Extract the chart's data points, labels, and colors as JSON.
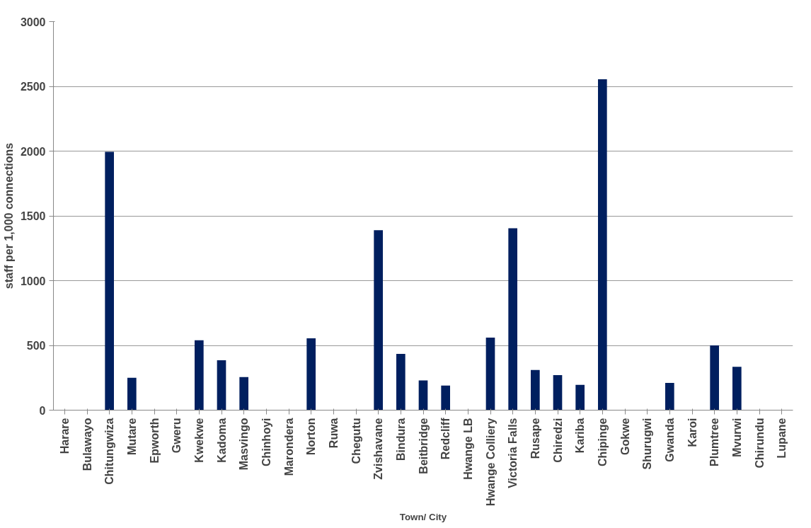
{
  "chart_data": {
    "type": "bar",
    "xlabel": "Town/ City",
    "ylabel": "staff per 1,000 connections",
    "categories": [
      "Harare",
      "Bulawayo",
      "Chitungwiza",
      "Mutare",
      "Epworth",
      "Gweru",
      "Kwekwe",
      "Kadoma",
      "Masvingo",
      "Chinhoyi",
      "Marondera",
      "Norton",
      "Ruwa",
      "Chegutu",
      "Zvishavane",
      "Bindura",
      "Beitbridge",
      "Redcliff",
      "Hwange LB",
      "Hwange Colliery",
      "Victoria Falls",
      "Rusape",
      "Chiredzi",
      "Kariba",
      "Chipinge",
      "Gokwe",
      "Shurugwi",
      "Gwanda",
      "Karoi",
      "Plumtree",
      "Mvurwi",
      "Chirundu",
      "Lupane"
    ],
    "values": [
      0,
      0,
      1995,
      250,
      0,
      0,
      540,
      385,
      255,
      0,
      0,
      555,
      0,
      0,
      1390,
      435,
      230,
      190,
      0,
      560,
      1405,
      310,
      270,
      195,
      2555,
      0,
      0,
      210,
      0,
      500,
      335,
      0,
      0
    ],
    "color": "#001f5f",
    "ylim": [
      0,
      3000
    ],
    "yticks": [
      0,
      500,
      1000,
      1500,
      2000,
      2500,
      3000
    ],
    "grid": "y"
  }
}
